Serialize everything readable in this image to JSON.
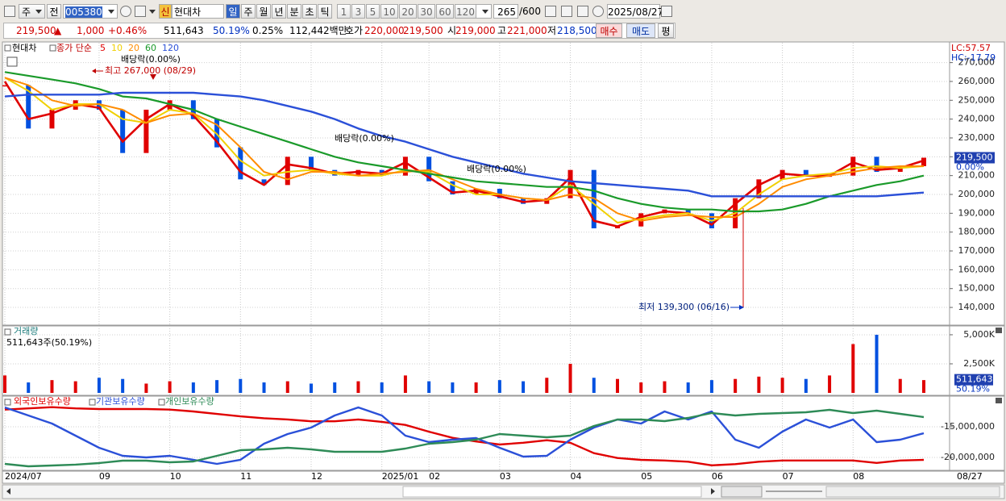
{
  "toolbar": {
    "period": "주",
    "prev": "전",
    "code": "005380",
    "badge": "신",
    "name": "현대차",
    "intervals": [
      "일",
      "주",
      "월",
      "년",
      "분",
      "초",
      "틱"
    ],
    "minutes": [
      "1",
      "3",
      "5",
      "10",
      "20",
      "30",
      "60",
      "120"
    ],
    "count": "265",
    "max": "/600",
    "date": "2025/08/27"
  },
  "quote": {
    "price": "219,500",
    "arrow": "▲",
    "change": "1,000",
    "change_pct": "+0.46%",
    "volume": "511,643",
    "volume_ratio": "50.19%",
    "turnover": "0.25%",
    "amount": "112,442백만",
    "ask_label": "호가",
    "ask": "220,000",
    "bid": "219,500",
    "open_label": "시",
    "open": "219,000",
    "high_label": "고",
    "high": "221,000",
    "low_label": "저",
    "low": "218,500",
    "buy": "매수",
    "sell": "매도",
    "avg": "평"
  },
  "chart_data": [
    {
      "type": "line",
      "legend_prefix": "종가 단순",
      "categories": [
        "2024/07",
        null,
        null,
        null,
        "09",
        null,
        null,
        "10",
        null,
        null,
        "11",
        null,
        null,
        "12",
        null,
        null,
        "2025/01",
        null,
        "02",
        null,
        null,
        "03",
        null,
        null,
        "04",
        null,
        null,
        "05",
        null,
        null,
        "06",
        null,
        null,
        "07",
        null,
        null,
        "08",
        null,
        null,
        null
      ],
      "x_end_label": "08/27",
      "up_color": "#e00000",
      "down_color": "#0050e0",
      "series": [
        {
          "name": "현대차",
          "style": "candle",
          "values": [
            258000,
            235000,
            245000,
            250000,
            245000,
            222000,
            245000,
            250000,
            240000,
            225000,
            208000,
            205000,
            220000,
            213000,
            210000,
            213000,
            210000,
            220000,
            207000,
            200000,
            203000,
            198000,
            195000,
            198000,
            213000,
            182000,
            183000,
            190000,
            192000,
            190000,
            182000,
            198000,
            208000,
            213000,
            210000,
            210000,
            220000,
            212000,
            215000,
            219500
          ]
        },
        {
          "name": "5",
          "color": "#e00000",
          "width": 2.6,
          "values": [
            260000,
            240000,
            243000,
            248000,
            246000,
            228000,
            240000,
            248000,
            242000,
            228000,
            212000,
            205000,
            216000,
            214000,
            211000,
            212000,
            211000,
            217000,
            209000,
            201000,
            202000,
            199000,
            196000,
            197000,
            209000,
            186000,
            183000,
            188000,
            191000,
            190000,
            184000,
            195000,
            205000,
            211000,
            210000,
            210000,
            217000,
            213000,
            214000,
            218000
          ]
        },
        {
          "name": "10",
          "color": "#f0d000",
          "width": 2,
          "values": [
            262000,
            255000,
            245000,
            248000,
            248000,
            240000,
            238000,
            245000,
            243000,
            232000,
            218000,
            210000,
            212000,
            213000,
            211000,
            210000,
            210000,
            213000,
            212000,
            205000,
            200000,
            200000,
            198000,
            197000,
            205000,
            195000,
            185000,
            187000,
            189000,
            190000,
            186000,
            190000,
            200000,
            208000,
            210000,
            211000,
            214000,
            215000,
            214000,
            215000
          ]
        },
        {
          "name": "20",
          "color": "#ff8c00",
          "width": 2,
          "values": [
            262000,
            258000,
            250000,
            247000,
            248000,
            245000,
            238000,
            242000,
            243000,
            237000,
            225000,
            212000,
            208000,
            212000,
            212000,
            210000,
            211000,
            212000,
            213000,
            208000,
            203000,
            200000,
            198000,
            197000,
            200000,
            198000,
            190000,
            186000,
            188000,
            189000,
            188000,
            188000,
            195000,
            204000,
            208000,
            210000,
            212000,
            214000,
            215000,
            215000
          ]
        },
        {
          "name": "60",
          "color": "#1a9a2a",
          "width": 2.2,
          "values": [
            265000,
            263000,
            261000,
            259000,
            256000,
            252000,
            251000,
            248000,
            245000,
            240000,
            236000,
            232000,
            228000,
            224000,
            220000,
            217000,
            215000,
            213000,
            211000,
            209000,
            207000,
            206000,
            205000,
            204000,
            204000,
            202000,
            198000,
            195000,
            193000,
            192000,
            192000,
            191000,
            191000,
            192000,
            195000,
            199000,
            202000,
            205000,
            207000,
            210000
          ]
        },
        {
          "name": "120",
          "color": "#2b50d8",
          "width": 2.4,
          "values": [
            252000,
            253000,
            253000,
            253000,
            253000,
            254000,
            254000,
            254000,
            254000,
            253000,
            252000,
            250000,
            247000,
            244000,
            240000,
            235000,
            231000,
            228000,
            224000,
            220000,
            217000,
            214000,
            211000,
            209000,
            207000,
            206000,
            205000,
            204000,
            203000,
            202000,
            199000,
            199000,
            199000,
            199000,
            199000,
            199000,
            199000,
            199000,
            200000,
            201000
          ]
        }
      ],
      "ylim": [
        130600,
        278400
      ],
      "yticks": [
        {
          "value": 140000,
          "label": "140,000"
        },
        {
          "value": 150000,
          "label": "150,000"
        },
        {
          "value": 160000,
          "label": "160,000"
        },
        {
          "value": 170000,
          "label": "170,000"
        },
        {
          "value": 180000,
          "label": "180,000"
        },
        {
          "value": 190000,
          "label": "190,000"
        },
        {
          "value": 200000,
          "label": "200,000"
        },
        {
          "value": 210000,
          "label": "210,000"
        },
        {
          "value": 220000,
          "label": "220,000"
        },
        {
          "value": 230000,
          "label": "230,000"
        },
        {
          "value": 240000,
          "label": "240,000"
        },
        {
          "value": 250000,
          "label": "250,000"
        },
        {
          "value": 260000,
          "label": "260,000"
        },
        {
          "value": 270000,
          "label": "270,000"
        }
      ],
      "grid": true,
      "lc": "LC:57.57",
      "hc": "HC:-17.79",
      "current": {
        "value": 219500,
        "label": "219,500"
      },
      "current_pct": "0.00%",
      "annotations": [
        "배당락(0.00%)",
        "배당락(0.00%)",
        "배당락(0.00%)",
        "최고 267,000 (08/29)",
        "최저 139,300 (06/16)"
      ]
    },
    {
      "type": "bar",
      "title": "거래량",
      "subtitle": "511,643주(50.19%)",
      "values": [
        1500,
        900,
        1100,
        1000,
        1300,
        1200,
        800,
        1000,
        900,
        1100,
        1200,
        900,
        1000,
        800,
        900,
        1000,
        900,
        1500,
        1000,
        900,
        900,
        1100,
        1000,
        1300,
        2500,
        1300,
        1200,
        900,
        1000,
        900,
        1100,
        1200,
        1400,
        1300,
        1200,
        1500,
        4200,
        5000,
        1200,
        1100
      ],
      "ylim": [
        0,
        5690
      ],
      "yticks": [
        {
          "value": 2500,
          "label": "2,500K"
        },
        {
          "value": 5000,
          "label": "5,000K"
        }
      ],
      "current": {
        "value": 511.643,
        "label": "511,643"
      },
      "current_pct": "50.19%"
    },
    {
      "type": "line",
      "series": [
        {
          "name": "외국인보유수량",
          "color": "#e00000",
          "values": [
            -12200000,
            -12000000,
            -11800000,
            -12000000,
            -12100000,
            -12100000,
            -12100000,
            -12200000,
            -12500000,
            -12900000,
            -13300000,
            -13600000,
            -13800000,
            -14100000,
            -14100000,
            -13800000,
            -14200000,
            -14700000,
            -15800000,
            -16800000,
            -17400000,
            -17900000,
            -17600000,
            -17200000,
            -17600000,
            -19300000,
            -20100000,
            -20400000,
            -20500000,
            -20700000,
            -21300000,
            -21100000,
            -20700000,
            -20500000,
            -20500000,
            -20500000,
            -20500000,
            -20900000,
            -20500000,
            -20400000
          ]
        },
        {
          "name": "기관보유수량",
          "color": "#2b50d8",
          "values": [
            -11840000,
            -13160000,
            -14470000,
            -16450000,
            -18420000,
            -19740000,
            -20000000,
            -19740000,
            -20390000,
            -21050000,
            -20390000,
            -17760000,
            -16180000,
            -15130000,
            -13160000,
            -11840000,
            -13160000,
            -16450000,
            -17500000,
            -17110000,
            -16840000,
            -18420000,
            -19870000,
            -19740000,
            -17110000,
            -15130000,
            -13820000,
            -14470000,
            -12500000,
            -13820000,
            -12500000,
            -17110000,
            -18420000,
            -15790000,
            -13820000,
            -15130000,
            -13820000,
            -17500000,
            -17110000,
            -16050000
          ]
        },
        {
          "name": "개인보유수량",
          "color": "#2e8b57",
          "values": [
            -21050000,
            -21450000,
            -21320000,
            -21180000,
            -20920000,
            -20530000,
            -20530000,
            -20790000,
            -20660000,
            -19740000,
            -18820000,
            -18680000,
            -18420000,
            -18680000,
            -19080000,
            -19080000,
            -19080000,
            -18550000,
            -17760000,
            -17500000,
            -17110000,
            -16180000,
            -16450000,
            -16710000,
            -16450000,
            -14870000,
            -13820000,
            -13820000,
            -14080000,
            -13550000,
            -12760000,
            -13160000,
            -12890000,
            -12760000,
            -12630000,
            -12240000,
            -12760000,
            -12370000,
            -12890000,
            -13420000
          ]
        }
      ],
      "ylim": [
        -22110000,
        -10390000
      ],
      "yticks": [
        {
          "value": -20000000,
          "label": "-20,000,000"
        },
        {
          "value": -15000000,
          "label": "-15,000,000"
        }
      ]
    }
  ]
}
